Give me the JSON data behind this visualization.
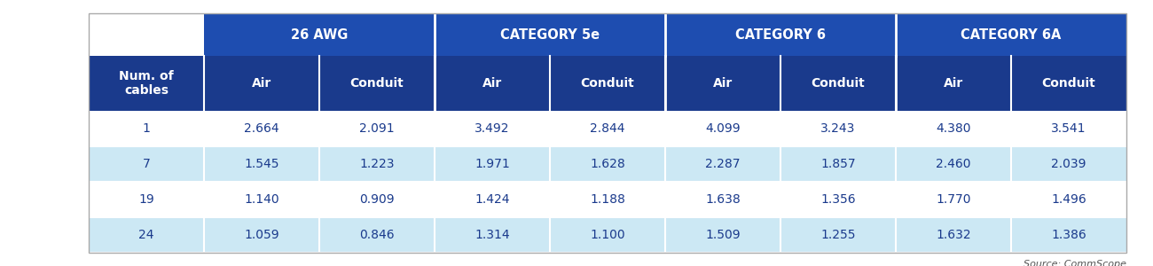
{
  "col_headers_top": [
    "26 AWG",
    "CATEGORY 5e",
    "CATEGORY 6",
    "CATEGORY 6A"
  ],
  "col_headers_sub": [
    "Air",
    "Conduit",
    "Air",
    "Conduit",
    "Air",
    "Conduit",
    "Air",
    "Conduit"
  ],
  "row_header_label": "Num. of\ncables",
  "num_cables": [
    "1",
    "7",
    "19",
    "24"
  ],
  "table_data": [
    [
      "2.664",
      "2.091",
      "3.492",
      "2.844",
      "4.099",
      "3.243",
      "4.380",
      "3.541"
    ],
    [
      "1.545",
      "1.223",
      "1.971",
      "1.628",
      "2.287",
      "1.857",
      "2.460",
      "2.039"
    ],
    [
      "1.140",
      "0.909",
      "1.424",
      "1.188",
      "1.638",
      "1.356",
      "1.770",
      "1.496"
    ],
    [
      "1.059",
      "0.846",
      "1.314",
      "1.100",
      "1.509",
      "1.255",
      "1.632",
      "1.386"
    ]
  ],
  "row_bg_white": "#ffffff",
  "row_bg_light_blue": "#cce8f4",
  "header_text_color": "#ffffff",
  "data_text_color": "#1a3a8c",
  "source_text": "Source: CommScope",
  "top_header_bg": "#1e4db0",
  "sub_header_bg": "#1a3a8c",
  "corner_bg": "#ffffff",
  "top_left_corner_bg": "#ffffff"
}
